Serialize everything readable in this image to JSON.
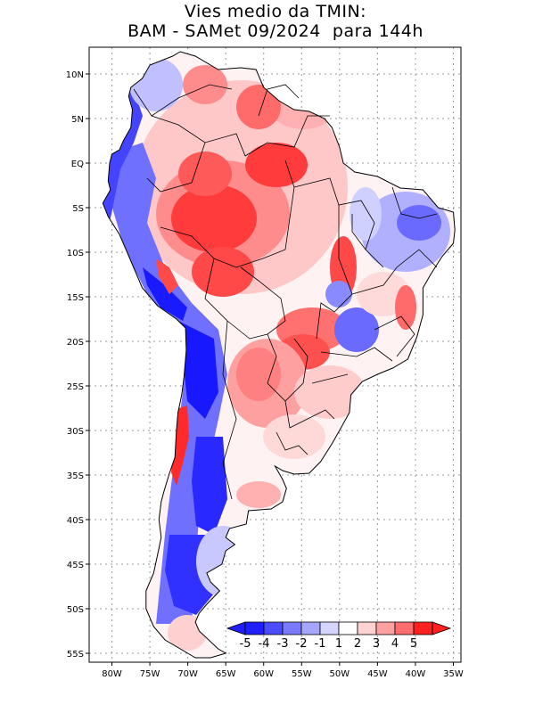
{
  "title": {
    "line1": "Vies medio da TMIN:",
    "line2": "BAM - SAMet 09/2024  para 144h"
  },
  "axes": {
    "lat_labels": [
      "10N",
      "5N",
      "EQ",
      "5S",
      "10S",
      "15S",
      "20S",
      "25S",
      "30S",
      "35S",
      "40S",
      "45S",
      "50S",
      "55S"
    ],
    "lat_values": [
      10,
      5,
      0,
      -5,
      -10,
      -15,
      -20,
      -25,
      -30,
      -35,
      -40,
      -45,
      -50,
      -55
    ],
    "lon_labels": [
      "80W",
      "75W",
      "70W",
      "65W",
      "60W",
      "55W",
      "50W",
      "45W",
      "40W",
      "35W"
    ],
    "lon_values": [
      -80,
      -75,
      -70,
      -65,
      -60,
      -55,
      -50,
      -45,
      -40,
      -35
    ],
    "lon_range": [
      -83,
      -34
    ],
    "lat_range": [
      -56,
      13
    ]
  },
  "colorbar": {
    "labels": [
      "-5",
      "-4",
      "-3",
      "-2",
      "-1",
      "1",
      "2",
      "3",
      "4",
      "5"
    ],
    "colors": [
      "#1f1fff",
      "#4b4bff",
      "#7a7aff",
      "#a6a6ff",
      "#d5d5ff",
      "#ffffff",
      "#ffd2d2",
      "#ffa0a0",
      "#ff6e6e",
      "#ff2020"
    ]
  },
  "colors": {
    "strong_red": "#ff2a2a",
    "red": "#ff6060",
    "light_red": "#ffb0b0",
    "pale_red": "#ffdcdc",
    "strong_blue": "#1818ff",
    "blue": "#5555ff",
    "light_blue": "#9a9aff",
    "pale_blue": "#d8d8ff"
  }
}
